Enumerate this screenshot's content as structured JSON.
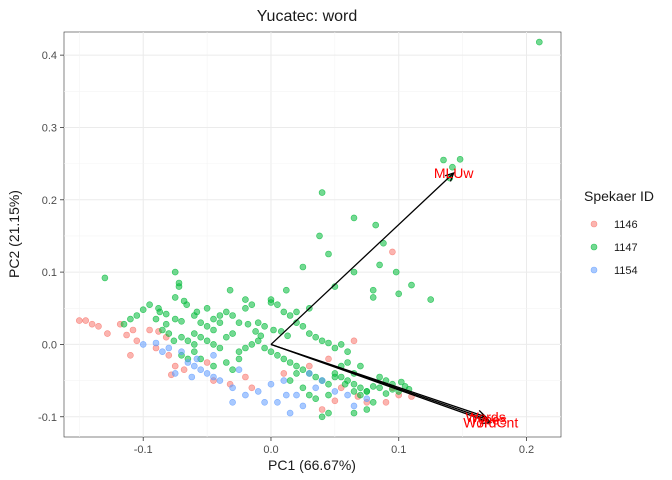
{
  "chart_data": {
    "type": "scatter",
    "title": "Yucatec: word",
    "xlabel": "PC1 (66.67%)",
    "ylabel": "PC2 (21.15%)",
    "xlim": [
      -0.162,
      0.227
    ],
    "ylim": [
      -0.128,
      0.432
    ],
    "x_ticks": [
      -0.1,
      0.0,
      0.1,
      0.2
    ],
    "x_tick_labels": [
      "-0.1",
      "0.0",
      "0.1",
      "0.2"
    ],
    "y_ticks": [
      -0.1,
      0.0,
      0.1,
      0.2,
      0.3,
      0.4
    ],
    "y_tick_labels": [
      "-0.1",
      "0.0",
      "0.1",
      "0.2",
      "0.3",
      "0.4"
    ],
    "grid": true,
    "legend": {
      "title": "Spekaer ID",
      "placement": "right",
      "entries": [
        "1146",
        "1147",
        "1154"
      ]
    },
    "series": [
      {
        "name": "1146",
        "color": "#F8766D",
        "points": [
          [
            -0.15,
            0.033
          ],
          [
            -0.145,
            0.033
          ],
          [
            -0.14,
            0.028
          ],
          [
            -0.135,
            0.025
          ],
          [
            -0.128,
            0.015
          ],
          [
            -0.118,
            0.028
          ],
          [
            -0.113,
            0.013
          ],
          [
            -0.108,
            0.02
          ],
          [
            -0.095,
            0.02
          ],
          [
            -0.088,
            0.018
          ],
          [
            -0.082,
            0.01
          ],
          [
            -0.105,
            0.005
          ],
          [
            -0.09,
            -0.005
          ],
          [
            -0.08,
            -0.015
          ],
          [
            -0.075,
            -0.03
          ],
          [
            -0.078,
            -0.042
          ],
          [
            -0.068,
            -0.035
          ],
          [
            -0.05,
            -0.025
          ],
          [
            -0.045,
            -0.05
          ],
          [
            -0.032,
            -0.055
          ],
          [
            -0.02,
            -0.045
          ],
          [
            -0.015,
            -0.06
          ],
          [
            0.01,
            -0.04
          ],
          [
            0.03,
            -0.03
          ],
          [
            0.045,
            -0.02
          ],
          [
            0.055,
            -0.06
          ],
          [
            0.068,
            -0.072
          ],
          [
            0.075,
            -0.08
          ],
          [
            0.09,
            -0.08
          ],
          [
            0.095,
            -0.06
          ],
          [
            0.1,
            -0.07
          ],
          [
            0.11,
            -0.072
          ],
          [
            0.05,
            -0.078
          ],
          [
            0.04,
            -0.09
          ],
          [
            -0.11,
            -0.015
          ],
          [
            0.095,
            0.128
          ],
          [
            0.065,
            0.005
          ]
        ]
      },
      {
        "name": "1147",
        "color": "#00BA38",
        "points": [
          [
            0.21,
            0.418
          ],
          [
            0.148,
            0.256
          ],
          [
            0.135,
            0.255
          ],
          [
            0.142,
            0.245
          ],
          [
            0.04,
            0.21
          ],
          [
            0.065,
            0.175
          ],
          [
            0.082,
            0.165
          ],
          [
            0.14,
            0.23
          ],
          [
            0.038,
            0.15
          ],
          [
            0.045,
            0.125
          ],
          [
            0.065,
            0.1
          ],
          [
            0.085,
            0.11
          ],
          [
            0.098,
            0.1
          ],
          [
            0.088,
            0.14
          ],
          [
            0.1,
            0.07
          ],
          [
            0.11,
            0.082
          ],
          [
            0.125,
            0.062
          ],
          [
            0.08,
            0.075
          ],
          [
            0.08,
            0.065
          ],
          [
            0.05,
            0.08
          ],
          [
            0.025,
            0.107
          ],
          [
            0.012,
            0.075
          ],
          [
            0.0,
            0.062
          ],
          [
            -0.02,
            0.062
          ],
          [
            -0.032,
            0.075
          ],
          [
            -0.075,
            0.1
          ],
          [
            -0.072,
            0.085
          ],
          [
            -0.072,
            0.08
          ],
          [
            -0.075,
            0.065
          ],
          [
            -0.068,
            0.06
          ],
          [
            -0.13,
            0.092
          ],
          [
            -0.088,
            0.05
          ],
          [
            -0.095,
            0.055
          ],
          [
            -0.1,
            0.048
          ],
          [
            -0.105,
            0.04
          ],
          [
            -0.11,
            0.035
          ],
          [
            -0.115,
            0.028
          ],
          [
            -0.09,
            0.035
          ],
          [
            -0.082,
            0.028
          ],
          [
            -0.075,
            0.035
          ],
          [
            -0.07,
            0.032
          ],
          [
            -0.066,
            0.055
          ],
          [
            -0.06,
            0.04
          ],
          [
            -0.055,
            0.03
          ],
          [
            -0.05,
            0.025
          ],
          [
            -0.045,
            0.02
          ],
          [
            -0.04,
            0.03
          ],
          [
            -0.035,
            0.045
          ],
          [
            -0.03,
            0.04
          ],
          [
            -0.025,
            0.03
          ],
          [
            -0.02,
            0.05
          ],
          [
            -0.015,
            0.055
          ],
          [
            -0.01,
            0.03
          ],
          [
            -0.005,
            0.025
          ],
          [
            0.0,
            0.058
          ],
          [
            0.005,
            0.055
          ],
          [
            0.01,
            0.045
          ],
          [
            0.015,
            0.04
          ],
          [
            0.02,
            0.03
          ],
          [
            0.025,
            0.025
          ],
          [
            0.03,
            0.015
          ],
          [
            0.035,
            0.01
          ],
          [
            0.04,
            0.005
          ],
          [
            0.045,
            0.002
          ],
          [
            0.05,
            -0.005
          ],
          [
            0.055,
            0.0
          ],
          [
            0.06,
            -0.01
          ],
          [
            -0.085,
            0.02
          ],
          [
            -0.08,
            0.015
          ],
          [
            -0.076,
            0.005
          ],
          [
            -0.07,
            0.01
          ],
          [
            -0.065,
            0.005
          ],
          [
            -0.06,
            0.015
          ],
          [
            -0.055,
            0.01
          ],
          [
            -0.05,
            0.005
          ],
          [
            -0.045,
            0.0
          ],
          [
            -0.04,
            -0.005
          ],
          [
            -0.035,
            0.01
          ],
          [
            -0.03,
            0.015
          ],
          [
            -0.025,
            -0.01
          ],
          [
            -0.02,
            -0.005
          ],
          [
            -0.015,
            0.0
          ],
          [
            -0.01,
            0.005
          ],
          [
            -0.005,
            -0.005
          ],
          [
            0.0,
            -0.01
          ],
          [
            0.005,
            -0.015
          ],
          [
            0.01,
            -0.02
          ],
          [
            0.015,
            -0.025
          ],
          [
            0.02,
            -0.03
          ],
          [
            0.025,
            -0.035
          ],
          [
            0.03,
            -0.04
          ],
          [
            0.035,
            -0.045
          ],
          [
            0.04,
            -0.05
          ],
          [
            0.045,
            -0.055
          ],
          [
            0.05,
            -0.04
          ],
          [
            0.055,
            -0.045
          ],
          [
            0.06,
            -0.05
          ],
          [
            0.065,
            -0.055
          ],
          [
            0.07,
            -0.06
          ],
          [
            0.075,
            -0.065
          ],
          [
            0.08,
            -0.058
          ],
          [
            0.085,
            -0.06
          ],
          [
            0.09,
            -0.068
          ],
          [
            0.095,
            -0.062
          ],
          [
            0.1,
            -0.065
          ],
          [
            0.105,
            -0.058
          ],
          [
            0.065,
            -0.04
          ],
          [
            0.07,
            -0.03
          ],
          [
            0.06,
            -0.025
          ],
          [
            0.055,
            -0.03
          ],
          [
            -0.06,
            -0.01
          ],
          [
            -0.055,
            -0.02
          ],
          [
            -0.045,
            -0.03
          ],
          [
            -0.035,
            -0.025
          ],
          [
            -0.03,
            -0.035
          ],
          [
            -0.025,
            -0.02
          ],
          [
            -0.065,
            -0.02
          ],
          [
            -0.07,
            -0.015
          ],
          [
            -0.06,
            0.0
          ],
          [
            0.085,
            -0.045
          ],
          [
            0.08,
            -0.08
          ],
          [
            0.075,
            -0.09
          ],
          [
            0.065,
            -0.095
          ],
          [
            0.04,
            -0.1
          ],
          [
            0.045,
            -0.095
          ],
          [
            0.075,
            -0.065
          ],
          [
            0.02,
            -0.04
          ],
          [
            0.015,
            -0.05
          ],
          [
            0.025,
            -0.06
          ],
          [
            0.03,
            -0.07
          ],
          [
            0.035,
            -0.075
          ],
          [
            0.045,
            -0.07
          ],
          [
            -0.018,
            0.028
          ],
          [
            -0.012,
            0.018
          ],
          [
            -0.008,
            0.012
          ],
          [
            0.002,
            0.02
          ],
          [
            0.008,
            0.018
          ],
          [
            0.013,
            0.012
          ],
          [
            -0.045,
            0.035
          ],
          [
            -0.04,
            0.04
          ],
          [
            0.02,
            0.045
          ],
          [
            0.03,
            0.05
          ],
          [
            -0.05,
            0.05
          ],
          [
            -0.058,
            0.045
          ],
          [
            0.102,
            -0.052
          ],
          [
            0.108,
            -0.062
          ],
          [
            0.09,
            -0.05
          ],
          [
            0.095,
            -0.055
          ],
          [
            0.065,
            -0.065
          ],
          [
            0.07,
            -0.07
          ],
          [
            0.05,
            -0.045
          ],
          [
            0.058,
            -0.055
          ],
          [
            -0.082,
            0.042
          ],
          [
            -0.087,
            0.045
          ]
        ]
      },
      {
        "name": "1154",
        "color": "#619CFF",
        "points": [
          [
            -0.1,
            0.0
          ],
          [
            -0.09,
            0.002
          ],
          [
            -0.08,
            -0.005
          ],
          [
            -0.07,
            -0.01
          ],
          [
            -0.065,
            -0.025
          ],
          [
            -0.06,
            -0.03
          ],
          [
            -0.055,
            -0.035
          ],
          [
            -0.05,
            -0.04
          ],
          [
            -0.045,
            -0.045
          ],
          [
            -0.04,
            -0.05
          ],
          [
            -0.03,
            -0.06
          ],
          [
            -0.02,
            -0.07
          ],
          [
            -0.01,
            -0.065
          ],
          [
            0.0,
            -0.055
          ],
          [
            0.01,
            -0.05
          ],
          [
            0.012,
            -0.07
          ],
          [
            0.005,
            -0.08
          ],
          [
            -0.005,
            -0.08
          ],
          [
            0.02,
            -0.07
          ],
          [
            0.025,
            -0.085
          ],
          [
            0.035,
            -0.06
          ],
          [
            0.05,
            -0.065
          ],
          [
            0.06,
            -0.07
          ],
          [
            0.065,
            -0.085
          ],
          [
            0.075,
            -0.075
          ],
          [
            -0.085,
            -0.01
          ],
          [
            -0.075,
            -0.04
          ],
          [
            -0.045,
            -0.015
          ],
          [
            -0.025,
            -0.035
          ],
          [
            0.015,
            -0.095
          ],
          [
            -0.03,
            -0.08
          ],
          [
            0.03,
            -0.04
          ],
          [
            0.04,
            -0.05
          ],
          [
            -0.062,
            -0.045
          ],
          [
            -0.058,
            -0.02
          ]
        ]
      }
    ],
    "loadings": [
      {
        "label": "MLUw",
        "x": 0.143,
        "y": 0.237
      },
      {
        "label": "Words",
        "x": 0.168,
        "y": -0.1
      },
      {
        "label": "Types",
        "x": 0.17,
        "y": -0.104
      },
      {
        "label": "WordCnt",
        "x": 0.172,
        "y": -0.108
      }
    ],
    "loading_color": "#FF0000"
  }
}
